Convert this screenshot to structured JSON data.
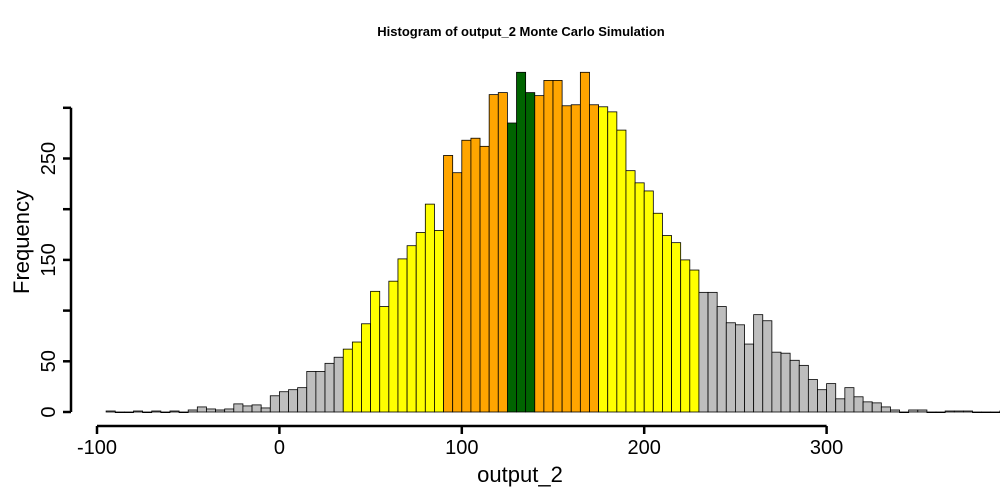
{
  "chart_data": {
    "type": "bar",
    "title": "Histogram of  output_2  Monte Carlo Simulation",
    "xlabel": "output_2",
    "ylabel": "Frequency",
    "bin_width": 5,
    "x_start": -95,
    "xlim": [
      -100,
      360
    ],
    "ylim": [
      0,
      330
    ],
    "x_ticks": [
      -100,
      0,
      100,
      200,
      300
    ],
    "x_tick_labels": [
      "-100",
      "0",
      "100",
      "200",
      "300"
    ],
    "y_ticks": [
      0,
      50,
      100,
      150,
      200,
      250,
      300
    ],
    "y_tick_labels": [
      "0",
      "50",
      "",
      "150",
      "",
      "250",
      ""
    ],
    "grid": false,
    "legend": "none",
    "colors": {
      "tail": "#bebebe",
      "yellow": "#ffff00",
      "orange": "#ffa500",
      "center": "#006400",
      "outline": "#000000"
    },
    "bands": [
      {
        "from": -95,
        "to": 35,
        "color": "tail"
      },
      {
        "from": 35,
        "to": 90,
        "color": "yellow"
      },
      {
        "from": 90,
        "to": 125,
        "color": "orange"
      },
      {
        "from": 125,
        "to": 140,
        "color": "center"
      },
      {
        "from": 140,
        "to": 175,
        "color": "orange"
      },
      {
        "from": 175,
        "to": 230,
        "color": "yellow"
      },
      {
        "from": 230,
        "to": 360,
        "color": "tail"
      }
    ],
    "values": [
      1,
      0,
      0,
      1,
      0,
      1,
      0,
      1,
      0,
      2,
      5,
      3,
      2,
      3,
      8,
      6,
      7,
      4,
      16,
      20,
      22,
      24,
      40,
      40,
      48,
      54,
      62,
      69,
      87,
      119,
      104,
      129,
      151,
      164,
      177,
      205,
      179,
      253,
      236,
      268,
      270,
      262,
      313,
      315,
      285,
      335,
      315,
      312,
      327,
      327,
      302,
      303,
      335,
      303,
      301,
      296,
      278,
      238,
      226,
      218,
      196,
      174,
      167,
      150,
      140,
      118,
      118,
      104,
      88,
      86,
      67,
      96,
      90,
      59,
      58,
      51,
      46,
      32,
      22,
      28,
      13,
      24,
      15,
      10,
      9,
      5,
      2,
      0,
      2,
      2,
      0,
      0,
      1,
      1,
      1,
      0,
      0,
      0,
      1
    ]
  }
}
